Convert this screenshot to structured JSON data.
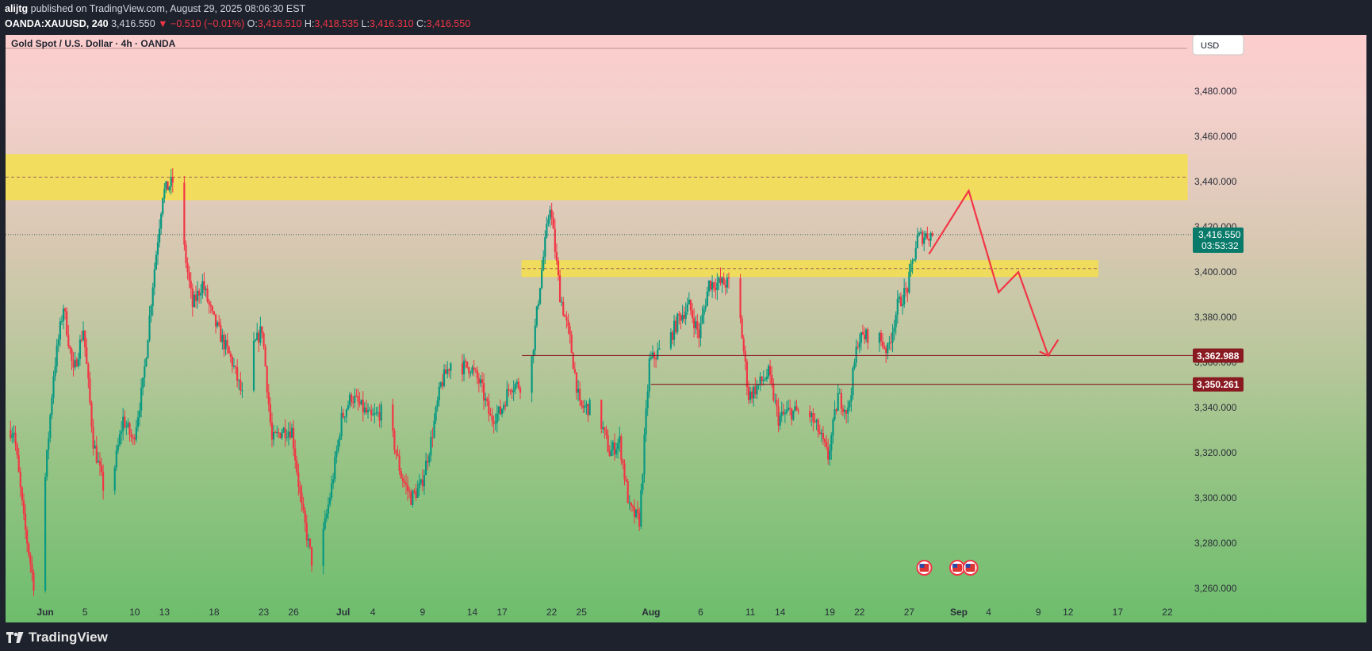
{
  "header": {
    "author": "alijtg",
    "published_text": " published on TradingView.com, August 29, 2025 08:06:30 EST",
    "symbol": "OANDA:XAUUSD, 240",
    "last": "3,416.550",
    "change": "▼ −0.510 (−0.01%)",
    "o_label": "O:",
    "o_value": "3,416.510",
    "h_label": "H:",
    "h_value": "3,418.535",
    "l_label": "L:",
    "l_value": "3,416.310",
    "c_label": "C:",
    "c_value": "3,416.550"
  },
  "footer": {
    "brand": "TradingView"
  },
  "colors": {
    "up": "#089981",
    "down": "#f23645",
    "zone": "#f5df4d",
    "level": "#8a1a22",
    "pattern": "#f23645"
  },
  "chart_data": {
    "type": "candlestick",
    "title": "Gold Spot / U.S. Dollar · 4h · OANDA",
    "currency": "USD",
    "ylim": [
      3255,
      3505
    ],
    "y_ticks": [
      "3,260.000",
      "3,280.000",
      "3,300.000",
      "3,320.000",
      "3,340.000",
      "3,360.000",
      "3,380.000",
      "3,400.000",
      "3,420.000",
      "3,440.000",
      "3,460.000",
      "3,480.000"
    ],
    "x_ticks": [
      "Jun",
      "5",
      "10",
      "13",
      "18",
      "23",
      "26",
      "Jul",
      "4",
      "9",
      "14",
      "17",
      "22",
      "25",
      "Aug",
      "6",
      "11",
      "14",
      "19",
      "22",
      "27",
      "Sep",
      "4",
      "9",
      "12",
      "17",
      "22"
    ],
    "price_path": [
      [
        "2025-05-29",
        3330
      ],
      [
        "2025-05-30",
        3290
      ],
      [
        "2025-05-31",
        3262
      ],
      [
        "2025-06-01",
        3300
      ],
      [
        "2025-06-02",
        3355
      ],
      [
        "2025-06-03",
        3385
      ],
      [
        "2025-06-04",
        3355
      ],
      [
        "2025-06-05",
        3375
      ],
      [
        "2025-06-06",
        3325
      ],
      [
        "2025-06-07",
        3305
      ],
      [
        "2025-06-08",
        3310
      ],
      [
        "2025-06-09",
        3335
      ],
      [
        "2025-06-10",
        3325
      ],
      [
        "2025-06-11",
        3350
      ],
      [
        "2025-06-12",
        3395
      ],
      [
        "2025-06-13",
        3435
      ],
      [
        "2025-06-14",
        3440
      ],
      [
        "2025-06-15",
        3415
      ],
      [
        "2025-06-16",
        3385
      ],
      [
        "2025-06-17",
        3395
      ],
      [
        "2025-06-18",
        3380
      ],
      [
        "2025-06-19",
        3370
      ],
      [
        "2025-06-20",
        3360
      ],
      [
        "2025-06-21",
        3345
      ],
      [
        "2025-06-22",
        3365
      ],
      [
        "2025-06-23",
        3375
      ],
      [
        "2025-06-24",
        3325
      ],
      [
        "2025-06-25",
        3330
      ],
      [
        "2025-06-26",
        3330
      ],
      [
        "2025-06-27",
        3295
      ],
      [
        "2025-06-28",
        3272
      ],
      [
        "2025-06-29",
        3280
      ],
      [
        "2025-06-30",
        3305
      ],
      [
        "2025-07-01",
        3335
      ],
      [
        "2025-07-02",
        3345
      ],
      [
        "2025-07-03",
        3340
      ],
      [
        "2025-07-04",
        3335
      ],
      [
        "2025-07-05",
        3338
      ],
      [
        "2025-07-06",
        3330
      ],
      [
        "2025-07-07",
        3310
      ],
      [
        "2025-07-08",
        3300
      ],
      [
        "2025-07-09",
        3305
      ],
      [
        "2025-07-10",
        3325
      ],
      [
        "2025-07-11",
        3350
      ],
      [
        "2025-07-12",
        3360
      ],
      [
        "2025-07-13",
        3358
      ],
      [
        "2025-07-14",
        3358
      ],
      [
        "2025-07-15",
        3350
      ],
      [
        "2025-07-16",
        3335
      ],
      [
        "2025-07-17",
        3338
      ],
      [
        "2025-07-18",
        3350
      ],
      [
        "2025-07-19",
        3350
      ],
      [
        "2025-07-20",
        3355
      ],
      [
        "2025-07-21",
        3395
      ],
      [
        "2025-07-22",
        3430
      ],
      [
        "2025-07-23",
        3390
      ],
      [
        "2025-07-24",
        3370
      ],
      [
        "2025-07-25",
        3340
      ],
      [
        "2025-07-26",
        3340
      ],
      [
        "2025-07-27",
        3335
      ],
      [
        "2025-07-28",
        3320
      ],
      [
        "2025-07-29",
        3325
      ],
      [
        "2025-07-30",
        3295
      ],
      [
        "2025-07-31",
        3290
      ],
      [
        "2025-08-01",
        3360
      ],
      [
        "2025-08-02",
        3365
      ],
      [
        "2025-08-03",
        3370
      ],
      [
        "2025-08-04",
        3380
      ],
      [
        "2025-08-05",
        3385
      ],
      [
        "2025-08-06",
        3372
      ],
      [
        "2025-08-07",
        3395
      ],
      [
        "2025-08-08",
        3395
      ],
      [
        "2025-08-09",
        3395
      ],
      [
        "2025-08-10",
        3385
      ],
      [
        "2025-08-11",
        3345
      ],
      [
        "2025-08-12",
        3350
      ],
      [
        "2025-08-13",
        3355
      ],
      [
        "2025-08-14",
        3335
      ],
      [
        "2025-08-15",
        3338
      ],
      [
        "2025-08-16",
        3338
      ],
      [
        "2025-08-17",
        3338
      ],
      [
        "2025-08-18",
        3330
      ],
      [
        "2025-08-19",
        3318
      ],
      [
        "2025-08-20",
        3345
      ],
      [
        "2025-08-21",
        3338
      ],
      [
        "2025-08-22",
        3370
      ],
      [
        "2025-08-23",
        3372
      ],
      [
        "2025-08-24",
        3372
      ],
      [
        "2025-08-25",
        3365
      ],
      [
        "2025-08-26",
        3385
      ],
      [
        "2025-08-27",
        3393
      ],
      [
        "2025-08-28",
        3415
      ],
      [
        "2025-08-29",
        3416.55
      ]
    ],
    "zones": [
      {
        "from": "2025-05-28",
        "to": "2025-09-24",
        "low": 3432,
        "high": 3452,
        "mid": 3442
      },
      {
        "from": "2025-07-19",
        "to": "2025-09-15",
        "low": 3398,
        "high": 3405,
        "mid": 3401.5
      }
    ],
    "levels": [
      {
        "price": 3362.988,
        "label": "3,362.988",
        "from": "2025-07-19"
      },
      {
        "price": 3350.261,
        "label": "3,350.261",
        "from": "2025-08-01"
      }
    ],
    "current_price": {
      "price": 3416.55,
      "label": "3,416.550",
      "countdown": "03:53:32"
    },
    "projection": [
      [
        "2025-08-29",
        3408
      ],
      [
        "2025-09-02",
        3436
      ],
      [
        "2025-09-05",
        3391
      ],
      [
        "2025-09-07",
        3400
      ],
      [
        "2025-09-10",
        3363
      ],
      [
        "2025-09-11",
        3370
      ]
    ]
  }
}
